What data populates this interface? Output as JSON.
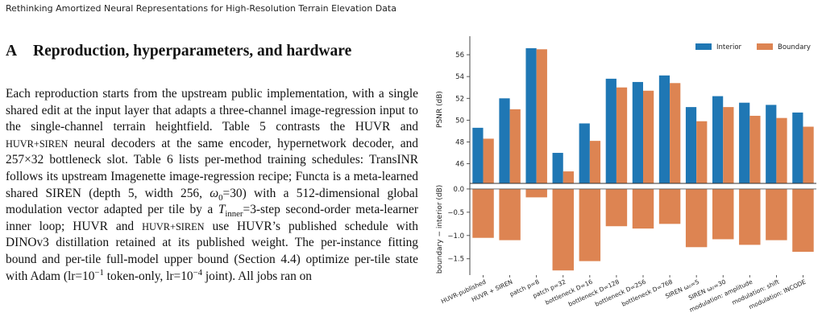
{
  "header": "Rethinking Amortized Neural Representations for High-Resolution Terrain Elevation Data",
  "section": {
    "letter": "A",
    "title": "Reproduction, hyperparameters, and hardware"
  },
  "paragraph": [
    "Each reproduction starts from the upstream public implementation, with a single shared edit at the input layer that adapts a three-channel image-regression input to the single-channel terrain heightfield. Table 5 contrasts the HUVR and ",
    {
      "sc": "HUVR+SIREN"
    },
    " neural decoders at the same encoder, hypernetwork decoder, and 257×32 bottleneck slot. Table 6 lists per-method training schedules: TransINR follows its upstream Imagenette image-regression recipe; Functa is a meta-learned shared SIREN (depth 5, width 256, ",
    {
      "i": "ω"
    },
    {
      "sub": "0"
    },
    "=30) with a 512-dimensional global modulation vector adapted per tile by a ",
    {
      "i": "T"
    },
    {
      "sub": "inner"
    },
    "=3-step second-order meta-learner inner loop; HUVR and ",
    {
      "sc": "HUVR+SIREN"
    },
    " use HUVR’s published schedule with DINOv3 distillation retained at its published weight. The per-instance fitting bound and per-tile full-model upper bound (Section 4.4) optimize per-tile state with Adam (lr=10",
    {
      "sup": "−1"
    },
    " token-only, lr=10",
    {
      "sup": "−4"
    },
    " joint). All jobs ran on"
  ],
  "chart_data": [
    {
      "type": "grouped-bar",
      "y_label": "PSNR (dB)",
      "ylim": [
        44.2,
        57.7
      ],
      "yticks": [
        46,
        48,
        50,
        52,
        54,
        56
      ],
      "legend": "upper right",
      "series": [
        {
          "name": "Interior",
          "color": "#1f77b4",
          "values": [
            49.3,
            52.0,
            56.6,
            47.0,
            49.7,
            53.8,
            53.5,
            54.1,
            51.2,
            52.2,
            51.6,
            51.4,
            50.7
          ]
        },
        {
          "name": "Boundary",
          "color": "#dd8452",
          "values": [
            48.3,
            51.0,
            56.5,
            45.3,
            48.1,
            53.0,
            52.7,
            53.4,
            49.9,
            51.2,
            50.4,
            50.2,
            49.4
          ]
        }
      ]
    },
    {
      "type": "bar",
      "y_label": "boundary − interior (dB)",
      "color": "#dd8452",
      "ylim": [
        -1.85,
        0.12
      ],
      "yticks": [
        {
          "value": 0,
          "label": "0.0"
        },
        {
          "value": -0.5,
          "label": "−0.5"
        },
        {
          "value": -1,
          "label": "−1.0"
        },
        {
          "value": -1.5,
          "label": "−1.5"
        }
      ],
      "categories": [
        "HUVR-published",
        "HUVR + SIREN",
        "patch p=8",
        "patch p=32",
        "bottleneck D=16",
        "bottleneck D=128",
        "bottleneck D=256",
        "bottleneck D=768",
        "SIREN ω₀=5",
        "SIREN ω₀=30",
        "modulation: amplitude",
        "modulation: shift",
        "modulation: INCODE"
      ],
      "values": [
        -1.05,
        -1.1,
        -0.18,
        -1.75,
        -1.55,
        -0.8,
        -0.85,
        -0.75,
        -1.25,
        -1.08,
        -1.2,
        -1.1,
        -1.35
      ]
    }
  ]
}
